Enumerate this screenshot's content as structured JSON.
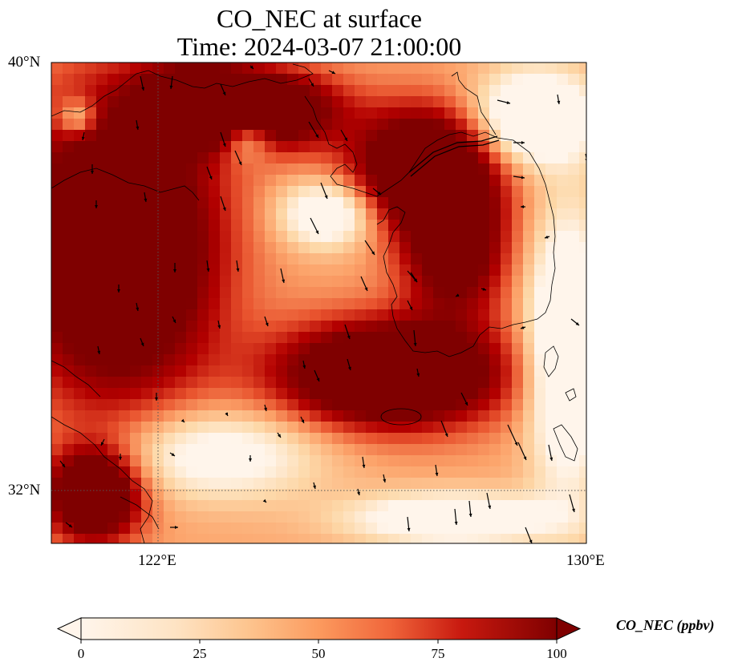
{
  "title": {
    "line1": "CO_NEC at surface",
    "line2": "Time: 2024-03-07 21:00:00"
  },
  "axes": {
    "lat_labels": [
      "40°N",
      "32°N"
    ],
    "lon_labels": [
      "122°E",
      "130°E"
    ],
    "lat_range": [
      31,
      40
    ],
    "lon_range": [
      120,
      130
    ],
    "gridlines": {
      "lat": [
        32
      ],
      "lon": [
        122
      ],
      "style": "dotted"
    }
  },
  "colorbar": {
    "label": "CO_NEC (ppbv)",
    "ticks": [
      "0",
      "25",
      "50",
      "75",
      "100"
    ],
    "range": [
      0,
      100
    ],
    "extend": "both",
    "colormap": [
      "#fff5eb",
      "#fdd8a8",
      "#fca36a",
      "#e8522d",
      "#b30000",
      "#7f0000"
    ]
  },
  "colors": {
    "high": "#7f0000",
    "mid": "#e8522d",
    "low": "#fff5eb",
    "coastline": "#000000",
    "wind_arrow": "#000000"
  }
}
